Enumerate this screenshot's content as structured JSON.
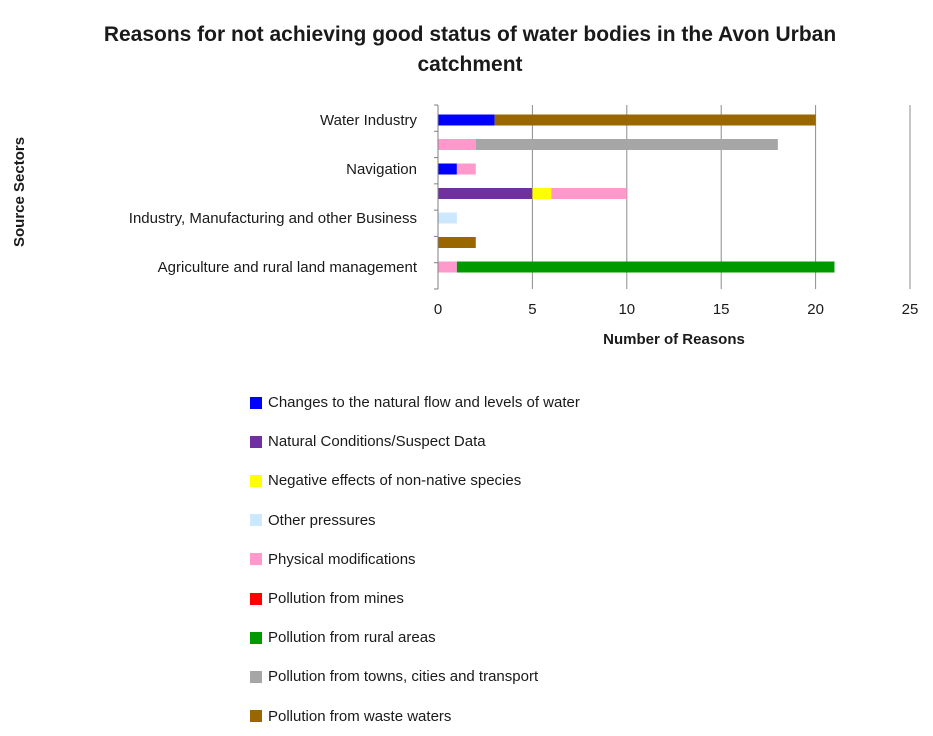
{
  "chart_data": {
    "type": "bar",
    "orientation": "horizontal",
    "stacked": true,
    "title": "Reasons for not achieving good status of water bodies in the Avon Urban catchment",
    "xlabel": "Number of Reasons",
    "ylabel": "Source Sectors",
    "xlim": [
      0,
      25
    ],
    "xticks": [
      0,
      5,
      10,
      15,
      20,
      25
    ],
    "grid": "vertical",
    "legend_position": "bottom",
    "categories": [
      "Water Industry",
      "",
      "Navigation",
      "",
      "Industry, Manufacturing and other Business",
      "",
      "Agriculture and rural land management"
    ],
    "series": [
      {
        "name": "Changes to the natural flow and levels of water",
        "color": "#0000ff",
        "values": [
          3,
          0,
          1,
          0,
          0,
          0,
          0
        ]
      },
      {
        "name": "Natural Conditions/Suspect Data",
        "color": "#7030a0",
        "values": [
          0,
          0,
          0,
          5,
          0,
          0,
          0
        ]
      },
      {
        "name": "Negative effects of non-native species",
        "color": "#ffff00",
        "values": [
          0,
          0,
          0,
          1,
          0,
          0,
          0
        ]
      },
      {
        "name": "Other pressures",
        "color": "#cce8ff",
        "values": [
          0,
          0,
          0,
          0,
          1,
          0,
          0
        ]
      },
      {
        "name": "Physical modifications",
        "color": "#ff99cc",
        "values": [
          0,
          2,
          1,
          4,
          0,
          0,
          1
        ]
      },
      {
        "name": "Pollution from mines",
        "color": "#ff0000",
        "values": [
          0,
          0,
          0,
          0,
          0,
          0,
          0
        ]
      },
      {
        "name": "Pollution from rural areas",
        "color": "#009900",
        "values": [
          0,
          0,
          0,
          0,
          0,
          0,
          20
        ]
      },
      {
        "name": "Pollution from towns, cities and transport",
        "color": "#a6a6a6",
        "values": [
          0,
          16,
          0,
          0,
          0,
          0,
          0
        ]
      },
      {
        "name": "Pollution from waste waters",
        "color": "#996600",
        "values": [
          17,
          0,
          0,
          0,
          0,
          2,
          0
        ]
      }
    ]
  }
}
